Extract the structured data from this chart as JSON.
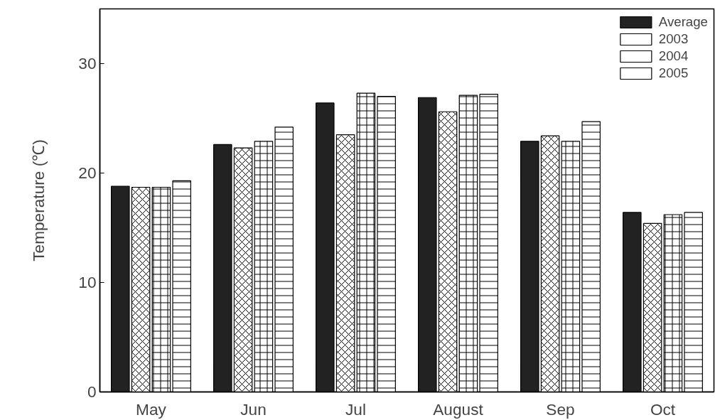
{
  "chart_data": {
    "type": "bar",
    "ylabel": "Temperature (℃)",
    "categories": [
      "May",
      "Jun",
      "Jul",
      "August",
      "Sep",
      "Oct"
    ],
    "series": [
      {
        "name": "Average",
        "color": "#222222",
        "values": [
          18.8,
          22.6,
          26.4,
          26.9,
          22.9,
          16.4
        ]
      },
      {
        "name": "2003",
        "color": "#ffffff",
        "values": [
          18.7,
          22.3,
          23.5,
          25.6,
          23.4,
          15.4
        ]
      },
      {
        "name": "2004",
        "color": "#ffffff",
        "values": [
          18.7,
          22.9,
          27.3,
          27.1,
          22.9,
          16.2
        ]
      },
      {
        "name": "2005",
        "color": "#ffffff",
        "values": [
          19.3,
          24.2,
          27.0,
          27.2,
          24.7,
          16.4
        ]
      }
    ],
    "ylim": [
      0,
      35
    ],
    "yticks": [
      0,
      10,
      20,
      30
    ],
    "grid": false,
    "legend": "top right"
  }
}
